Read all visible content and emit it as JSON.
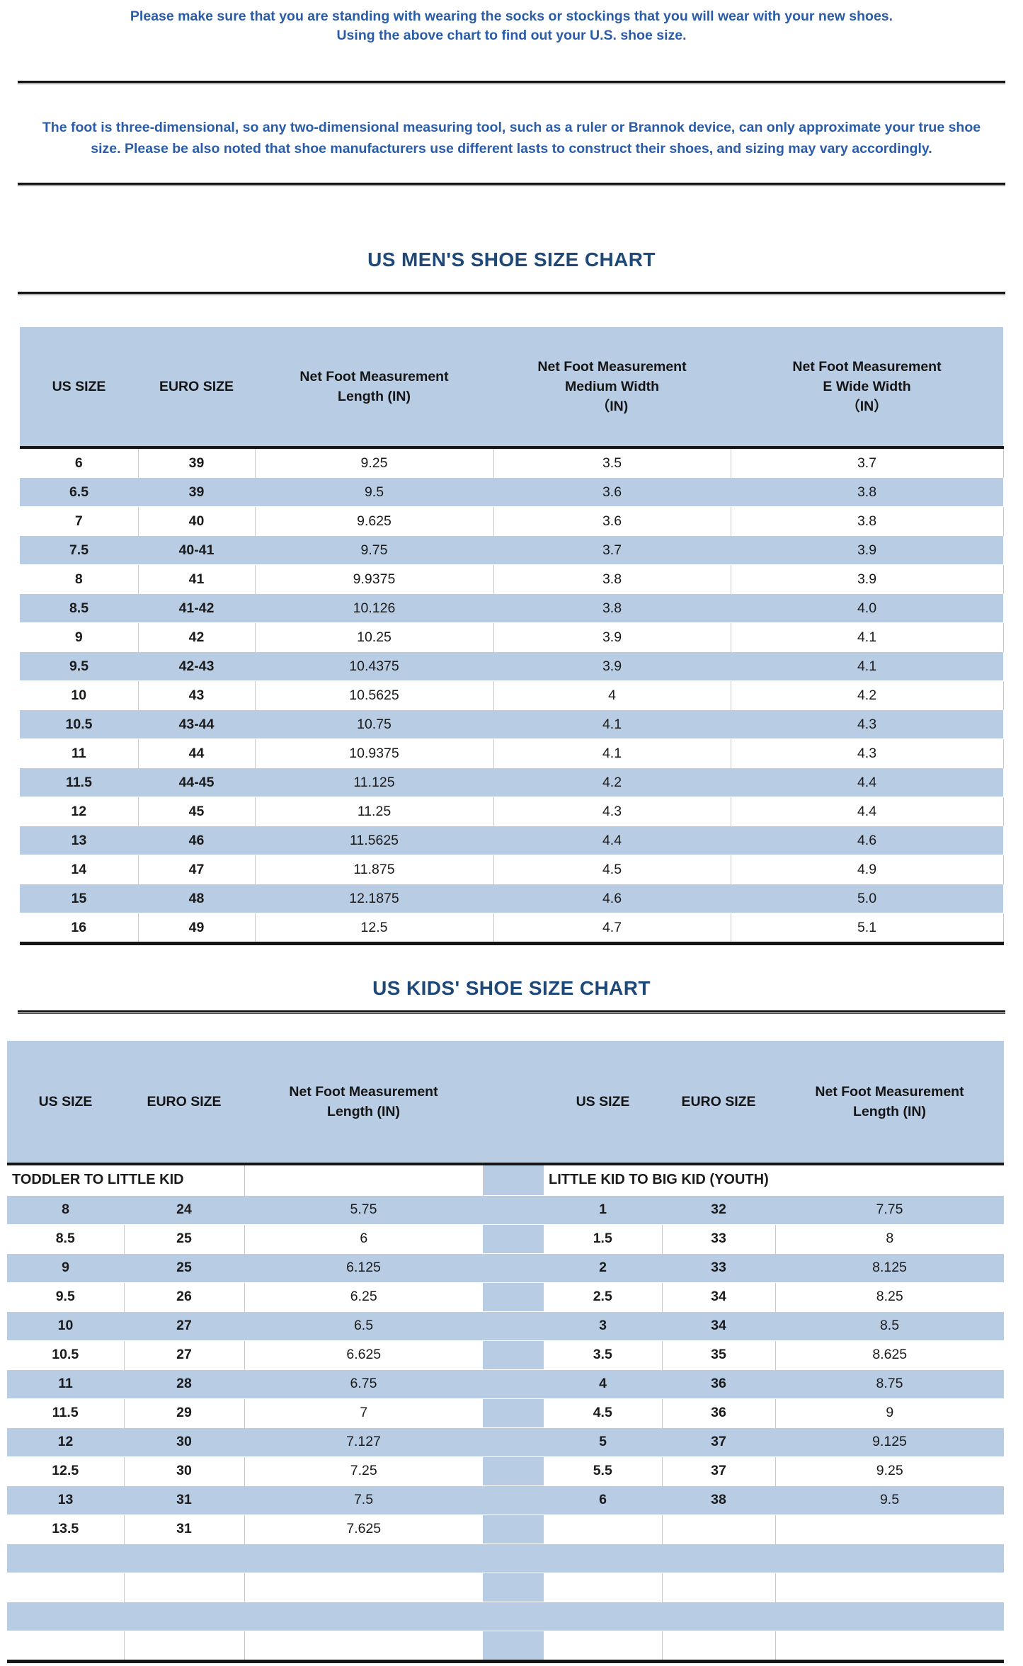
{
  "intro": {
    "line1": "Please make sure that you are standing with wearing the socks or stockings that you will wear with your new shoes.",
    "line2": "Using the above chart to find out your U.S. shoe size."
  },
  "note": "The foot is three-dimensional, so any two-dimensional measuring tool, such as a ruler or Brannok device, can only approximate your true shoe size. Please be also noted that shoe manufacturers use different lasts to construct their shoes, and sizing may vary accordingly.",
  "colors": {
    "paragraph_blue": "#2A5CA8",
    "title_navy": "#1E4878",
    "stripe_blue": "#B8CCE4",
    "rule_black": "#141414"
  },
  "mens_chart": {
    "title": "US MEN'S SHOE SIZE CHART",
    "headers": [
      "US SIZE",
      "EURO SIZE",
      "Net Foot Measurement\nLength (IN)",
      "Net Foot Measurement\nMedium Width\n（IN)",
      "Net Foot Measurement\nE Wide Width\n（IN）"
    ],
    "rows": [
      [
        "6",
        "39",
        "9.25",
        "3.5",
        "3.7"
      ],
      [
        "6.5",
        "39",
        "9.5",
        "3.6",
        "3.8"
      ],
      [
        "7",
        "40",
        "9.625",
        "3.6",
        "3.8"
      ],
      [
        "7.5",
        "40-41",
        "9.75",
        "3.7",
        "3.9"
      ],
      [
        "8",
        "41",
        "9.9375",
        "3.8",
        "3.9"
      ],
      [
        "8.5",
        "41-42",
        "10.126",
        "3.8",
        "4.0"
      ],
      [
        "9",
        "42",
        "10.25",
        "3.9",
        "4.1"
      ],
      [
        "9.5",
        "42-43",
        "10.4375",
        "3.9",
        "4.1"
      ],
      [
        "10",
        "43",
        "10.5625",
        "4",
        "4.2"
      ],
      [
        "10.5",
        "43-44",
        "10.75",
        "4.1",
        "4.3"
      ],
      [
        "11",
        "44",
        "10.9375",
        "4.1",
        "4.3"
      ],
      [
        "11.5",
        "44-45",
        "11.125",
        "4.2",
        "4.4"
      ],
      [
        "12",
        "45",
        "11.25",
        "4.3",
        "4.4"
      ],
      [
        "13",
        "46",
        "11.5625",
        "4.4",
        "4.6"
      ],
      [
        "14",
        "47",
        "11.875",
        "4.5",
        "4.9"
      ],
      [
        "15",
        "48",
        "12.1875",
        "4.6",
        "5.0"
      ],
      [
        "16",
        "49",
        "12.5",
        "4.7",
        "5.1"
      ]
    ]
  },
  "kids_chart": {
    "title": "US KIDS' SHOE SIZE CHART",
    "headers": [
      "US SIZE",
      "EURO SIZE",
      "Net Foot Measurement\nLength (IN)"
    ],
    "left_section_label": "TODDLER TO LITTLE KID",
    "right_section_label": "LITTLE KID TO BIG KID (YOUTH)",
    "left_rows": [
      [
        "8",
        "24",
        "5.75"
      ],
      [
        "8.5",
        "25",
        "6"
      ],
      [
        "9",
        "25",
        "6.125"
      ],
      [
        "9.5",
        "26",
        "6.25"
      ],
      [
        "10",
        "27",
        "6.5"
      ],
      [
        "10.5",
        "27",
        "6.625"
      ],
      [
        "11",
        "28",
        "6.75"
      ],
      [
        "11.5",
        "29",
        "7"
      ],
      [
        "12",
        "30",
        "7.127"
      ],
      [
        "12.5",
        "30",
        "7.25"
      ],
      [
        "13",
        "31",
        "7.5"
      ],
      [
        "13.5",
        "31",
        "7.625"
      ]
    ],
    "right_rows": [
      [
        "1",
        "32",
        "7.75"
      ],
      [
        "1.5",
        "33",
        "8"
      ],
      [
        "2",
        "33",
        "8.125"
      ],
      [
        "2.5",
        "34",
        "8.25"
      ],
      [
        "3",
        "34",
        "8.5"
      ],
      [
        "3.5",
        "35",
        "8.625"
      ],
      [
        "4",
        "36",
        "8.75"
      ],
      [
        "4.5",
        "36",
        "9"
      ],
      [
        "5",
        "37",
        "9.125"
      ],
      [
        "5.5",
        "37",
        "9.25"
      ],
      [
        "6",
        "38",
        "9.5"
      ]
    ],
    "total_body_rows": 16
  }
}
